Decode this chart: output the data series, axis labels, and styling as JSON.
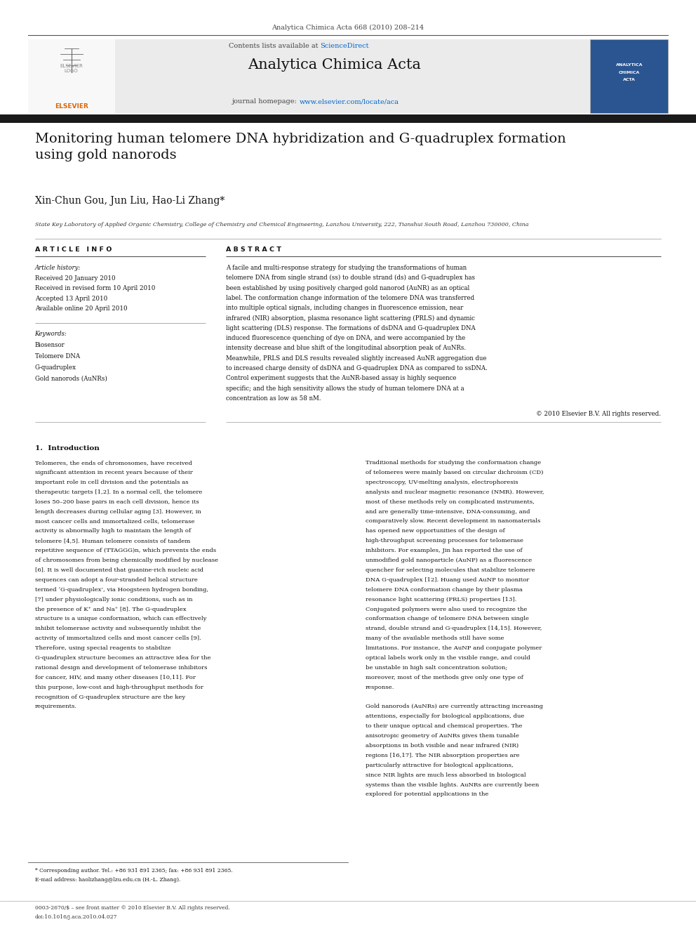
{
  "page_width": 9.92,
  "page_height": 13.23,
  "background_color": "#ffffff",
  "header_journal_ref": "Analytica Chimica Acta 668 (2010) 208–214",
  "header_bar_color": "#000000",
  "header_bg_color": "#e8e8e8",
  "header_contents_text": "Contents lists available at ",
  "header_sciencedirect_text": "ScienceDirect",
  "header_sciencedirect_color": "#0066cc",
  "header_journal_name": "Analytica Chimica Acta",
  "header_homepage_text": "journal homepage: ",
  "header_homepage_url": "www.elsevier.com/locate/aca",
  "header_homepage_url_color": "#0066cc",
  "article_title": "Monitoring human telomere DNA hybridization and G-quadruplex formation\nusing gold nanorods",
  "authors": "Xin-Chun Gou, Jun Liu, Hao-Li Zhang*",
  "affiliation": "State Key Laboratory of Applied Organic Chemistry, College of Chemistry and Chemical Engineering, Lanzhou University, 222, Tianshui South Road, Lanzhou 730000, China",
  "article_info_header": "A R T I C L E   I N F O",
  "abstract_header": "A B S T R A C T",
  "article_history_label": "Article history:",
  "article_history": [
    "Received 20 January 2010",
    "Received in revised form 10 April 2010",
    "Accepted 13 April 2010",
    "Available online 20 April 2010"
  ],
  "keywords_label": "Keywords:",
  "keywords": [
    "Biosensor",
    "Telomere DNA",
    "G-quadruplex",
    "Gold nanorods (AuNRs)"
  ],
  "abstract_text": "A facile and multi-response strategy for studying the transformations of human telomere DNA from single strand (ss) to double strand (ds) and G-quadruplex has been established by using positively charged gold nanorod (AuNR) as an optical label. The conformation change information of the telomere DNA was transferred into multiple optical signals, including changes in fluorescence emission, near infrared (NIR) absorption, plasma resonance light scattering (PRLS) and dynamic light scattering (DLS) response. The formations of dsDNA and G-quadruplex DNA induced fluorescence quenching of dye on DNA, and were accompanied by the intensity decrease and blue shift of the longitudinal absorption peak of AuNRs. Meanwhile, PRLS and DLS results revealed slightly increased AuNR aggregation due to increased charge density of dsDNA and G-quadruplex DNA as compared to ssDNA. Control experiment suggests that the AuNR-based assay is highly sequence specific; and the high sensitivity allows the study of human telomere DNA at a concentration as low as 58 nM.",
  "copyright_text": "© 2010 Elsevier B.V. All rights reserved.",
  "intro_section": "1.  Introduction",
  "intro_col1": "    Telomeres, the ends of chromosomes, have received significant attention in recent years because of their important role in cell division and the potentials as therapeutic targets [1,2]. In a normal cell, the telomere loses 50–200 base pairs in each cell division, hence its length decreases during cellular aging [3]. However, in most cancer cells and immortalized cells, telomerase activity is abnormally high to maintain the length of telomere [4,5]. Human telomere consists of tandem repetitive sequence of (TTAGGG)n, which prevents the ends of chromosomes from being chemically modified by nuclease [6]. It is well documented that guanine-rich nucleic acid sequences can adopt a four-stranded helical structure termed ‘G-quadruplex’, via Hoogsteen hydrogen bonding, [7] under physiologically ionic conditions, such as in the presence of K⁺ and Na⁺ [8]. The G-quadruplex structure is a unique conformation, which can effectively inhibit telomerase activity and subsequently inhibit the activity of immortalized cells and most cancer cells [9]. Therefore, using special reagents to stabilize G-quadruplex structure becomes an attractive idea for the rational design and development of telomerase inhibitors for cancer, HIV, and many other diseases [10,11]. For this purpose, low-cost and high-throughput methods for recognition of G-quadruplex structure are the key requirements.",
  "intro_col2": "    Traditional methods for studying the conformation change of telomeres were mainly based on circular dichroism (CD) spectroscopy, UV-melting analysis, electrophoresis analysis and nuclear magnetic resonance (NMR). However, most of these methods rely on complicated instruments, and are generally time-intensive, DNA-consuming, and comparatively slow. Recent development in nanomaterials has opened new opportunities of the design of high-throughput screening processes for telomerase inhibitors. For examples, Jin has reported the use of unmodified gold nanoparticle (AuNP) as a fluorescence quencher for selecting molecules that stabilize telomere DNA G-quadruplex [12]. Huang used AuNP to monitor telomere DNA conformation change by their plasma resonance light scattering (PRLS) properties [13]. Conjugated polymers were also used to recognize the conformation change of telomere DNA between single strand, double strand and G-quadruplex [14,15]. However, many of the available methods still have some limitations. For instance, the AuNP and conjugate polymer optical labels work only in the visible range, and could be unstable in high salt concentration solution; moreover, most of the methods give only one type of response.",
  "intro_col2b": "    Gold nanorods (AuNRs) are currently attracting increasing attentions, especially for biological applications, due to their unique optical and chemical properties. The anisotropic geometry of AuNRs gives them tunable absorptions in both visible and near infrared (NIR) regions [16,17]. The NIR absorption properties are particularly attractive for biological applications, since NIR lights are much less absorbed in biological systems than the visible lights. AuNRs are currently been explored for potential applications in the",
  "footer_left": "* Corresponding author. Tel.: +86 931 891 2365; fax: +86 931 891 2365.",
  "footer_email": "E-mail address: haolizhang@lzu.edu.cn (H.-L. Zhang).",
  "footer_bottom1": "0003-2670/$ – see front matter © 2010 Elsevier B.V. All rights reserved.",
  "footer_bottom2": "doi:10.1016/j.aca.2010.04.027"
}
